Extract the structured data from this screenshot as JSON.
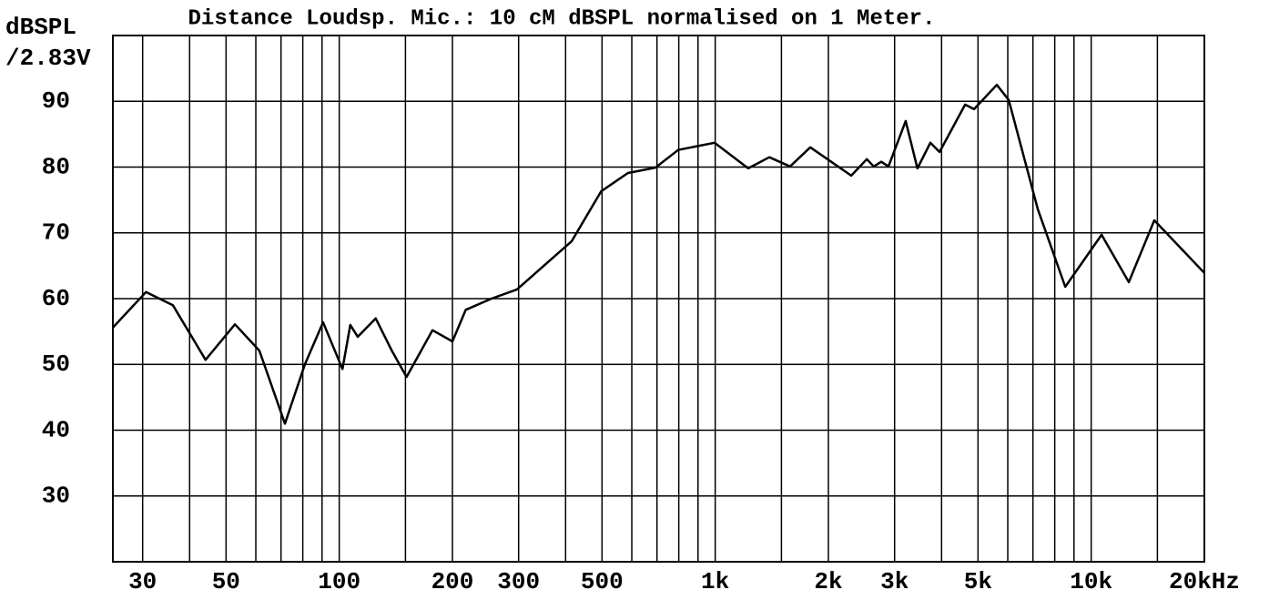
{
  "chart_data": {
    "type": "line",
    "title": "Distance Loudsp. Mic.: 10 cM dBSPL normalised on 1 Meter.",
    "y_label": [
      "dBSPL",
      "/2.83V"
    ],
    "x_scale": "log",
    "xlim": [
      25,
      20000
    ],
    "ylim": [
      20,
      100
    ],
    "yticks": [
      30,
      40,
      50,
      60,
      70,
      80,
      90
    ],
    "xticks": [
      {
        "value": 30,
        "label": "30"
      },
      {
        "value": 50,
        "label": "50"
      },
      {
        "value": 100,
        "label": "100"
      },
      {
        "value": 200,
        "label": "200"
      },
      {
        "value": 300,
        "label": "300"
      },
      {
        "value": 500,
        "label": "500"
      },
      {
        "value": 1000,
        "label": "1k"
      },
      {
        "value": 2000,
        "label": "2k"
      },
      {
        "value": 3000,
        "label": "3k"
      },
      {
        "value": 5000,
        "label": "5k"
      },
      {
        "value": 10000,
        "label": "10k"
      },
      {
        "value": 20000,
        "label": "20kHz"
      }
    ],
    "x_minor_grid": [
      40,
      60,
      70,
      80,
      90,
      150,
      400,
      600,
      700,
      800,
      900,
      1500,
      4000,
      6000,
      7000,
      8000,
      9000,
      15000
    ],
    "grid": true,
    "series": [
      {
        "color": "#000000",
        "x": [
          25,
          30.6,
          36.1,
          44.1,
          52.8,
          61.3,
          71.7,
          81,
          90.6,
          102,
          107,
          112,
          125,
          138,
          151,
          177,
          200,
          217,
          254,
          297,
          355,
          415,
          497,
          586,
          693,
          797,
          996,
          1224,
          1393,
          1582,
          1790,
          2300,
          2530,
          2640,
          2765,
          2890,
          3210,
          3450,
          3735,
          3950,
          4620,
          4880,
          5610,
          6035,
          7210,
          8530,
          10660,
          12590,
          14720,
          17100,
          20000
        ],
        "values": [
          55.6,
          61.0,
          59.0,
          50.7,
          56.1,
          52.1,
          41.0,
          50.0,
          56.4,
          49.3,
          56.0,
          54.2,
          57.0,
          52.1,
          48.1,
          55.2,
          53.5,
          58.3,
          60.0,
          61.4,
          65.3,
          68.7,
          76.3,
          79.1,
          79.9,
          82.6,
          83.7,
          79.8,
          81.5,
          80.1,
          83.0,
          78.7,
          81.2,
          80.1,
          80.8,
          80.1,
          87.0,
          79.8,
          83.7,
          82.3,
          89.5,
          88.8,
          92.5,
          90.2,
          73.6,
          61.8,
          69.7,
          62.5,
          71.9,
          68.0,
          63.9
        ]
      }
    ]
  }
}
